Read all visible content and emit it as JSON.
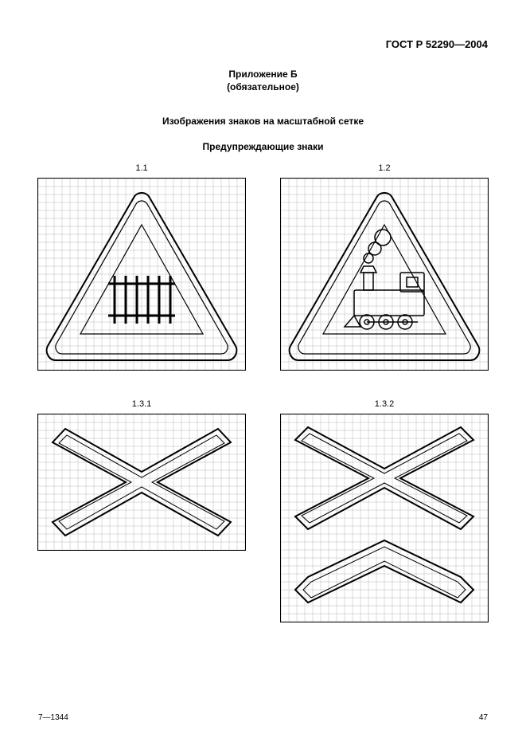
{
  "document_code": "ГОСТ Р 52290—2004",
  "appendix_label": "Приложение Б",
  "appendix_type": "(обязательное)",
  "section_title": "Изображения знаков на масштабной сетке",
  "subsection_title": "Предупреждающие знаки",
  "figures": {
    "row1": [
      {
        "label": "1.1",
        "type": "triangle-sign",
        "symbol": "fence",
        "grid": {
          "cols": 26,
          "rows": 24,
          "cell": 10,
          "line_color": "#b8b8b8",
          "thick_every": 0
        },
        "stroke": "#000000",
        "stroke_w": 1.3
      },
      {
        "label": "1.2",
        "type": "triangle-sign",
        "symbol": "locomotive",
        "grid": {
          "cols": 26,
          "rows": 24,
          "cell": 10,
          "line_color": "#b8b8b8"
        },
        "stroke": "#000000",
        "stroke_w": 1.3
      }
    ],
    "row2": [
      {
        "label": "1.3.1",
        "type": "cross-sign-single",
        "grid": {
          "cols": 26,
          "rows": 17,
          "cell": 10,
          "line_color": "#b8b8b8"
        },
        "stroke": "#000000",
        "stroke_w": 1.3
      },
      {
        "label": "1.3.2",
        "type": "cross-sign-double",
        "grid": {
          "cols": 26,
          "rows": 26,
          "cell": 10,
          "line_color": "#b8b8b8"
        },
        "stroke": "#000000",
        "stroke_w": 1.3
      }
    ]
  },
  "footer_left": "7—1344",
  "page_number": "47",
  "colors": {
    "paper": "#ffffff",
    "ink": "#000000",
    "grid": "#b8b8b8"
  }
}
